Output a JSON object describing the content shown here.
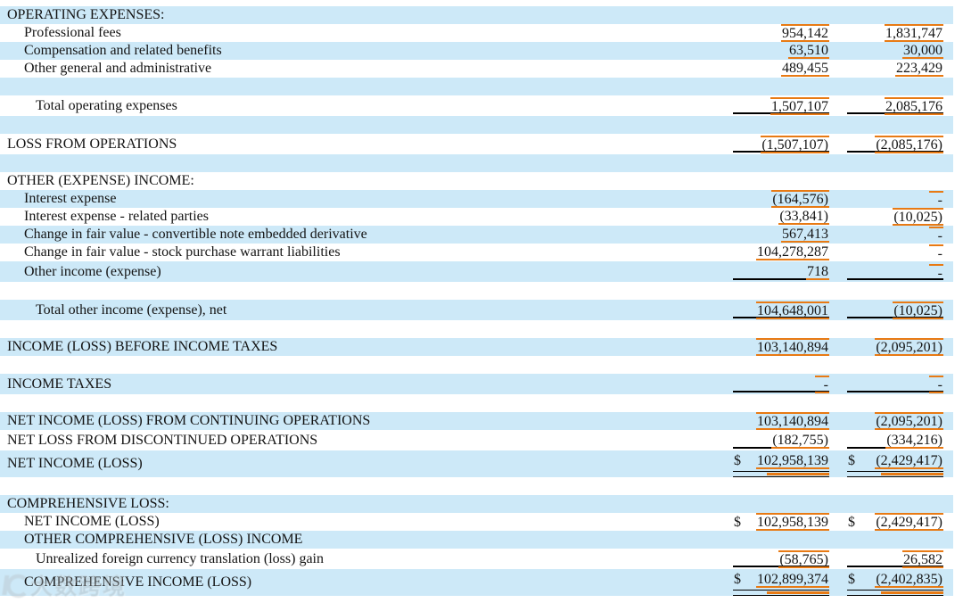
{
  "colors": {
    "stripe": "#cde9f8",
    "highlight": "#e87a14",
    "text": "#141414",
    "rule": "#000000"
  },
  "watermark": {
    "icon": "swoosh-logo-icon",
    "text": "大数跨境"
  },
  "table": {
    "rows": [
      {
        "label": "OPERATING EXPENSES:",
        "indent": 0,
        "cells": [
          null,
          null
        ]
      },
      {
        "label": "Professional fees",
        "indent": 1,
        "cells": [
          {
            "v": "954,142",
            "ot": true,
            "ob": true
          },
          {
            "v": "1,831,747",
            "ot": true,
            "ob": true
          }
        ]
      },
      {
        "label": "Compensation and related benefits",
        "indent": 1,
        "cells": [
          {
            "v": "63,510",
            "ob": true
          },
          {
            "v": "30,000",
            "ob": true
          }
        ]
      },
      {
        "label": "Other general and administrative",
        "indent": 1,
        "cells": [
          {
            "v": "489,455",
            "ob": true
          },
          {
            "v": "223,429",
            "ob": true
          }
        ]
      },
      {
        "label": "",
        "indent": 0,
        "cells": [
          null,
          null
        ]
      },
      {
        "label": "Total operating expenses",
        "indent": 2,
        "cells": [
          {
            "v": "1,507,107",
            "ot": true,
            "ob": true,
            "rule": "s"
          },
          {
            "v": "2,085,176",
            "ot": true,
            "ob": true,
            "rule": "s"
          }
        ]
      },
      {
        "label": "",
        "indent": 0,
        "cells": [
          null,
          null
        ]
      },
      {
        "label": "LOSS FROM OPERATIONS",
        "indent": 0,
        "cells": [
          {
            "v": "(1,507,107)",
            "ot": true,
            "ob": true,
            "rule": "s"
          },
          {
            "v": "(2,085,176)",
            "ot": true,
            "ob": true,
            "rule": "s"
          }
        ]
      },
      {
        "label": "",
        "indent": 0,
        "cells": [
          null,
          null
        ]
      },
      {
        "label": "OTHER (EXPENSE) INCOME:",
        "indent": 0,
        "cells": [
          null,
          null
        ]
      },
      {
        "label": "Interest expense",
        "indent": 1,
        "cells": [
          {
            "v": "(164,576)",
            "ot": true,
            "ob": true
          },
          {
            "v": "-",
            "dash": true,
            "ot": true
          }
        ]
      },
      {
        "label": "Interest expense - related parties",
        "indent": 1,
        "cells": [
          {
            "v": "(33,841)",
            "ob": true
          },
          {
            "v": "(10,025)",
            "ot": true,
            "ob": true
          }
        ]
      },
      {
        "label": "Change in fair value - convertible note embedded derivative",
        "indent": 1,
        "cells": [
          {
            "v": "567,413",
            "ob": true
          },
          {
            "v": "-",
            "dash": true,
            "ot": true
          }
        ]
      },
      {
        "label": "Change in fair value - stock purchase warrant liabilities",
        "indent": 1,
        "cells": [
          {
            "v": "104,278,287",
            "ob": true
          },
          {
            "v": "-",
            "dash": true,
            "ot": true
          }
        ]
      },
      {
        "label": "Other income (expense)",
        "indent": 1,
        "cells": [
          {
            "v": "718",
            "ob": true,
            "rule": "s"
          },
          {
            "v": "-",
            "dash": true,
            "ot": true,
            "rule": "s"
          }
        ]
      },
      {
        "label": "",
        "indent": 0,
        "cells": [
          null,
          null
        ]
      },
      {
        "label": "Total other income (expense), net",
        "indent": 2,
        "cells": [
          {
            "v": "104,648,001",
            "ot": true,
            "ob": true,
            "rule": "s"
          },
          {
            "v": "(10,025)",
            "ot": true,
            "ob": true,
            "rule": "s"
          }
        ]
      },
      {
        "label": "",
        "indent": 0,
        "cells": [
          null,
          null
        ]
      },
      {
        "label": "INCOME (LOSS) BEFORE INCOME TAXES",
        "indent": 0,
        "cells": [
          {
            "v": "103,140,894",
            "ot": true,
            "ob": true
          },
          {
            "v": "(2,095,201)",
            "ot": true,
            "ob": true
          }
        ]
      },
      {
        "label": "",
        "indent": 0,
        "cells": [
          null,
          null
        ]
      },
      {
        "label": "INCOME TAXES",
        "indent": 0,
        "cells": [
          {
            "v": "-",
            "dash": true,
            "ot": true,
            "ob": true,
            "rule": "s"
          },
          {
            "v": "-",
            "dash": true,
            "ot": true,
            "ob": true,
            "rule": "s"
          }
        ]
      },
      {
        "label": "",
        "indent": 0,
        "cells": [
          null,
          null
        ]
      },
      {
        "label": "NET INCOME (LOSS) FROM CONTINUING OPERATIONS",
        "indent": 0,
        "cells": [
          {
            "v": "103,140,894",
            "ot": true,
            "ob": true
          },
          {
            "v": "(2,095,201)",
            "ot": true,
            "ob": true
          }
        ]
      },
      {
        "label": "NET LOSS FROM DISCONTINUED OPERATIONS",
        "indent": 0,
        "cells": [
          {
            "v": "(182,755)",
            "ob": true,
            "rule": "s"
          },
          {
            "v": "(334,216)",
            "ob": true,
            "rule": "s"
          }
        ]
      },
      {
        "label": "NET INCOME (LOSS)",
        "indent": 0,
        "cells": [
          {
            "v": "102,958,139",
            "dollar": "$",
            "ob": true,
            "rule": "d"
          },
          {
            "v": "(2,429,417)",
            "dollar": "$",
            "ob": true,
            "rule": "d"
          }
        ]
      },
      {
        "label": "",
        "indent": 0,
        "cells": [
          null,
          null
        ]
      },
      {
        "label": "COMPREHENSIVE LOSS:",
        "indent": 0,
        "cells": [
          null,
          null
        ]
      },
      {
        "label": "NET INCOME (LOSS)",
        "indent": 1,
        "cells": [
          {
            "v": "102,958,139",
            "dollar": "$",
            "ot": true,
            "ob": true
          },
          {
            "v": "(2,429,417)",
            "dollar": "$",
            "ot": true,
            "ob": true
          }
        ]
      },
      {
        "label": "OTHER COMPREHENSIVE (LOSS) INCOME",
        "indent": 1,
        "cells": [
          null,
          null
        ]
      },
      {
        "label": "Unrealized foreign currency translation (loss) gain",
        "indent": 2,
        "cells": [
          {
            "v": "(58,765)",
            "ot": true,
            "ob": true,
            "rule": "s"
          },
          {
            "v": "26,582",
            "ot": true,
            "ob": true,
            "rule": "s"
          }
        ]
      },
      {
        "label": "COMPREHENSIVE INCOME (LOSS)",
        "indent": 1,
        "cells": [
          {
            "v": "102,899,374",
            "dollar": "$",
            "ob": true,
            "rule": "d"
          },
          {
            "v": "(2,402,835)",
            "dollar": "$",
            "ob": true,
            "rule": "d"
          }
        ]
      }
    ]
  }
}
